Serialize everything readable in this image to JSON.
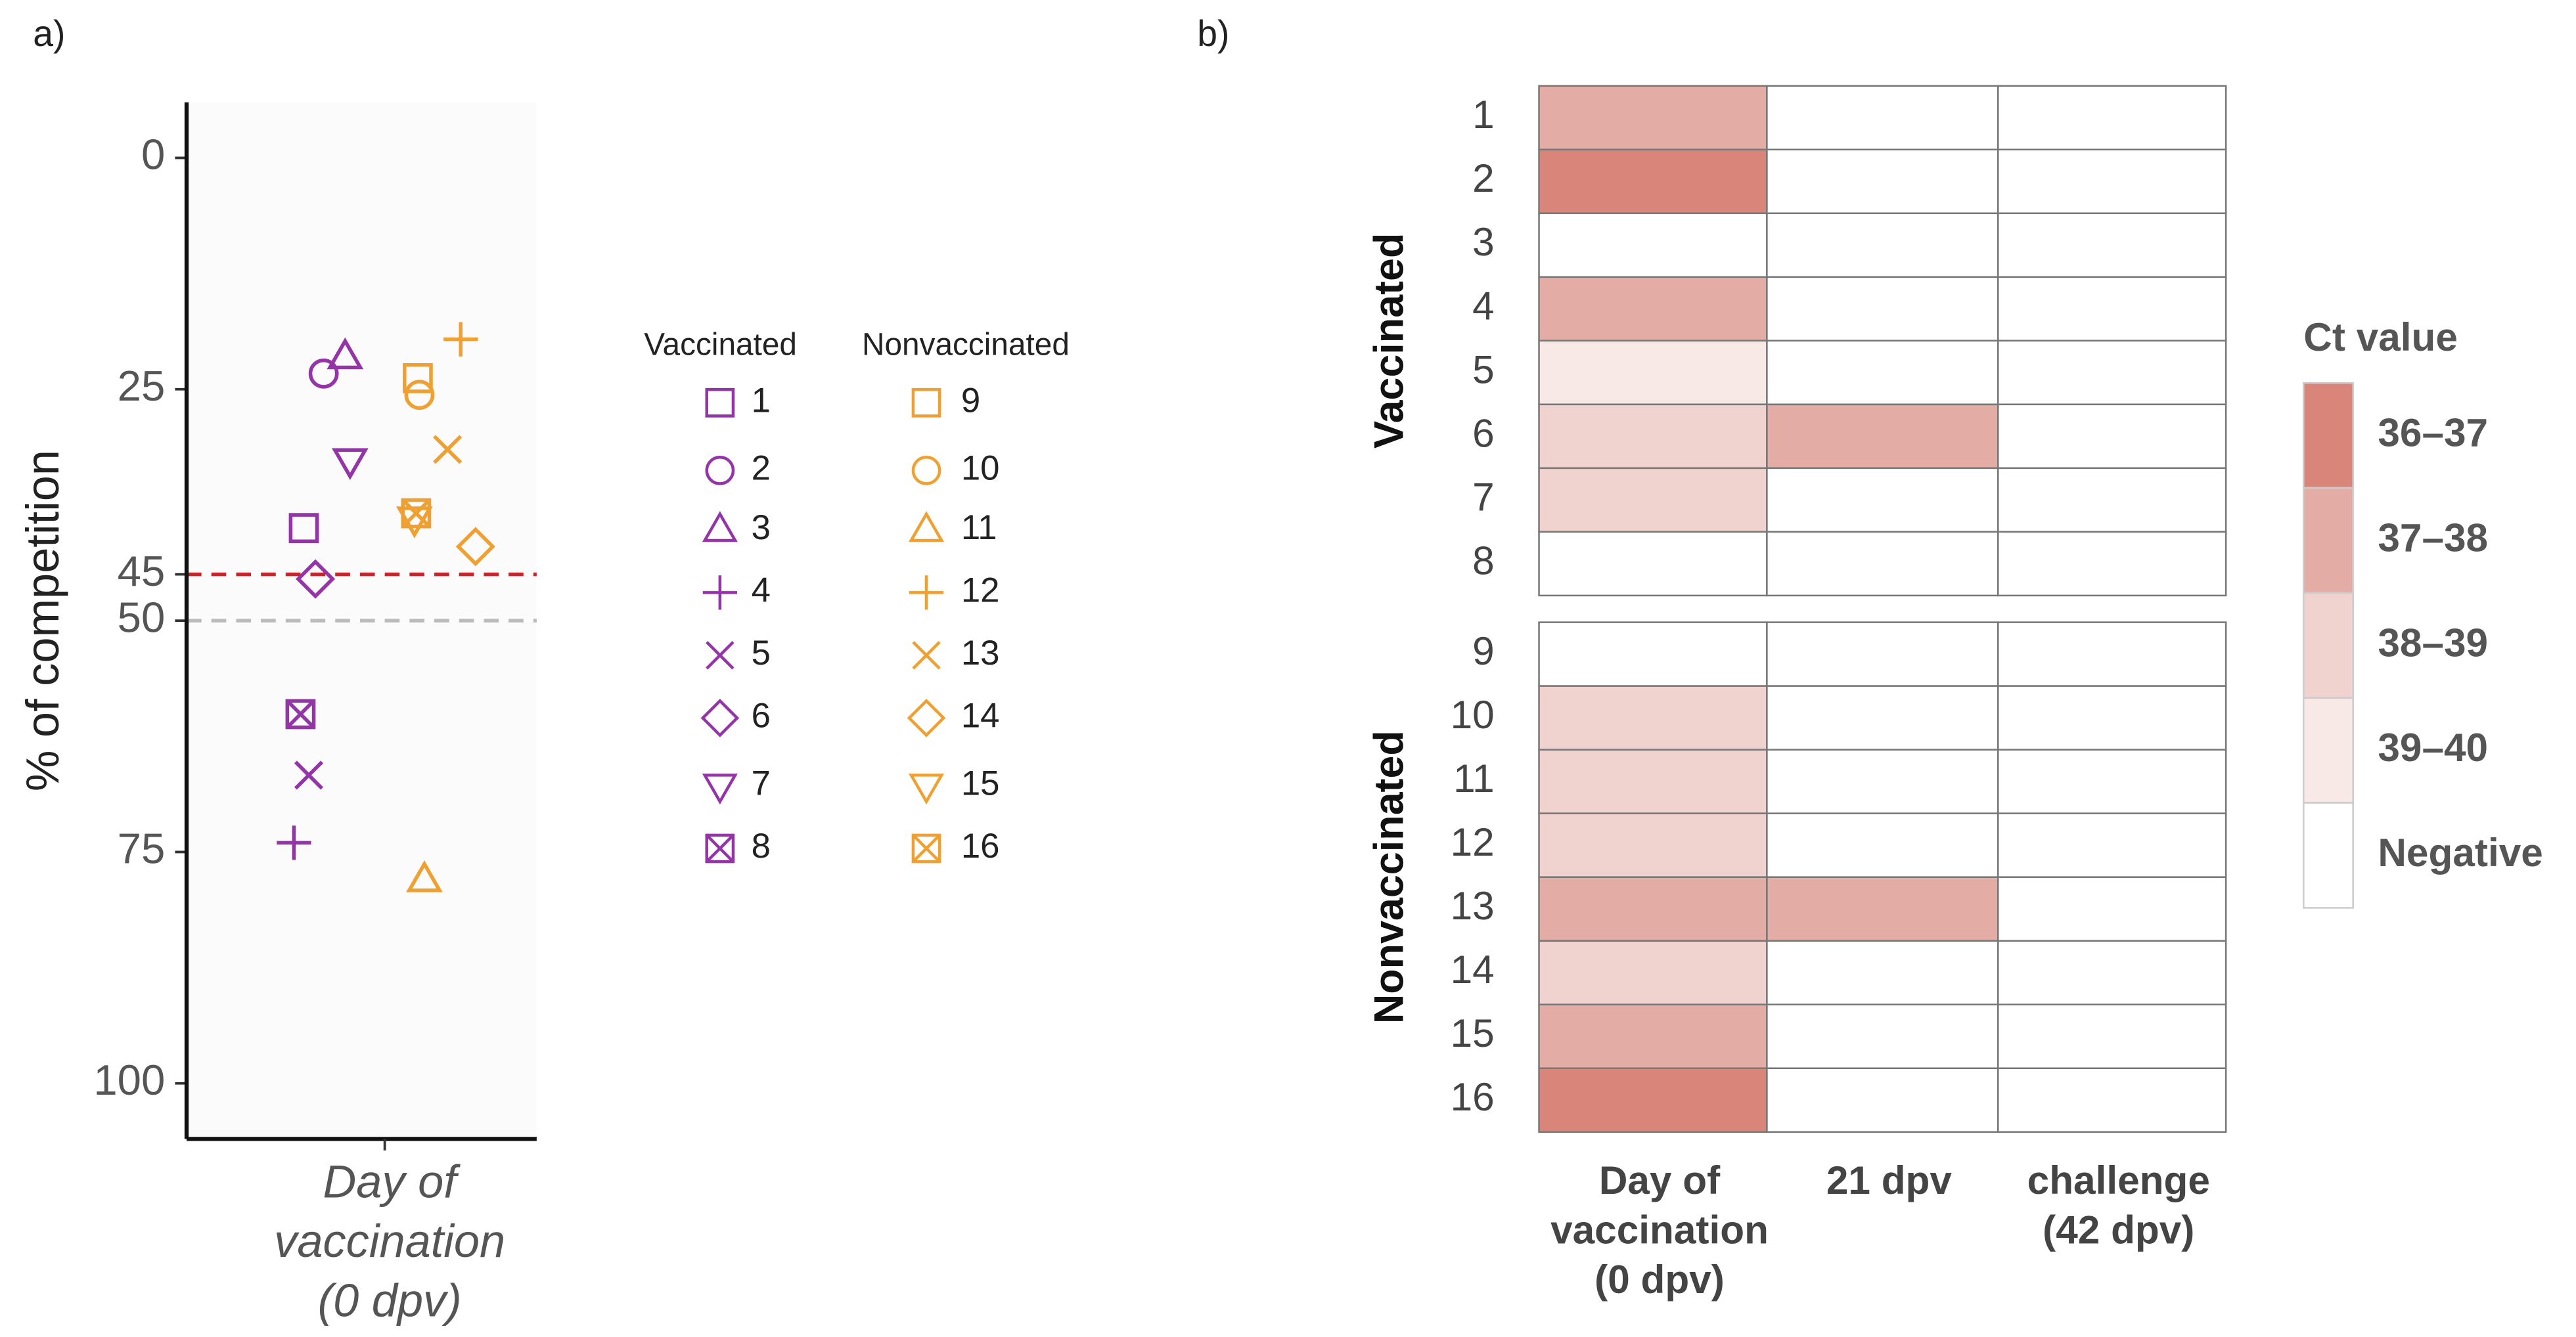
{
  "chart_data": [
    {
      "type": "scatter",
      "panel": "a)",
      "ylabel": "% of competition",
      "categories": [
        [
          "Day of",
          "vaccination",
          "(0 dpv)"
        ]
      ],
      "ylim": [
        -6,
        106
      ],
      "y_reversed": true,
      "yticks": [
        0,
        25,
        45,
        50,
        75,
        100
      ],
      "hlines": [
        {
          "value": 45,
          "color": "#c0282d"
        },
        {
          "value": 50,
          "color": "#bbbbbb"
        }
      ],
      "shapes": [
        "square",
        "circle",
        "triangle",
        "plus",
        "x",
        "diamond",
        "down-triangle",
        "boxed-x"
      ],
      "series": [
        {
          "name": "Vaccinated",
          "color": "#9434a8",
          "labels": [
            "1",
            "2",
            "3",
            "4",
            "5",
            "6",
            "7",
            "8"
          ],
          "values": [
            40,
            23.3,
            21.5,
            74,
            66.7,
            45.5,
            32.7,
            60.1
          ]
        },
        {
          "name": "Nonvaccinated",
          "color": "#f0a030",
          "labels": [
            "9",
            "10",
            "11",
            "12",
            "13",
            "14",
            "15",
            "16"
          ],
          "values": [
            23.8,
            25.6,
            78,
            19.6,
            31.5,
            42,
            39,
            38.4
          ]
        }
      ]
    },
    {
      "type": "heatmap",
      "panel": "b)",
      "columns": [
        [
          "Day of",
          "vaccination",
          "(0 dpv)"
        ],
        [
          "21 dpv"
        ],
        [
          "challenge",
          "(42 dpv)"
        ]
      ],
      "groups": [
        {
          "name": "Vaccinated",
          "rows": [
            "1",
            "2",
            "3",
            "4",
            "5",
            "6",
            "7",
            "8"
          ],
          "values": [
            [
              "37–38",
              "Negative",
              "Negative"
            ],
            [
              "36–37",
              "Negative",
              "Negative"
            ],
            [
              "Negative",
              "Negative",
              "Negative"
            ],
            [
              "37–38",
              "Negative",
              "Negative"
            ],
            [
              "39–40",
              "Negative",
              "Negative"
            ],
            [
              "38–39",
              "37–38",
              "Negative"
            ],
            [
              "38–39",
              "Negative",
              "Negative"
            ],
            [
              "Negative",
              "Negative",
              "Negative"
            ]
          ]
        },
        {
          "name": "Nonvaccinated",
          "rows": [
            "9",
            "10",
            "11",
            "12",
            "13",
            "14",
            "15",
            "16"
          ],
          "values": [
            [
              "Negative",
              "Negative",
              "Negative"
            ],
            [
              "38–39",
              "Negative",
              "Negative"
            ],
            [
              "38–39",
              "Negative",
              "Negative"
            ],
            [
              "38–39",
              "Negative",
              "Negative"
            ],
            [
              "37–38",
              "37–38",
              "Negative"
            ],
            [
              "38–39",
              "Negative",
              "Negative"
            ],
            [
              "37–38",
              "Negative",
              "Negative"
            ],
            [
              "36–37",
              "Negative",
              "Negative"
            ]
          ]
        }
      ],
      "legend": {
        "title": "Ct value",
        "labels": [
          "36–37",
          "37–38",
          "38–39",
          "39–40",
          "Negative"
        ],
        "colors": [
          "#d9857a",
          "#e3aca5",
          "#f0d3cf",
          "#f8e9e7",
          "#ffffff"
        ]
      }
    }
  ]
}
